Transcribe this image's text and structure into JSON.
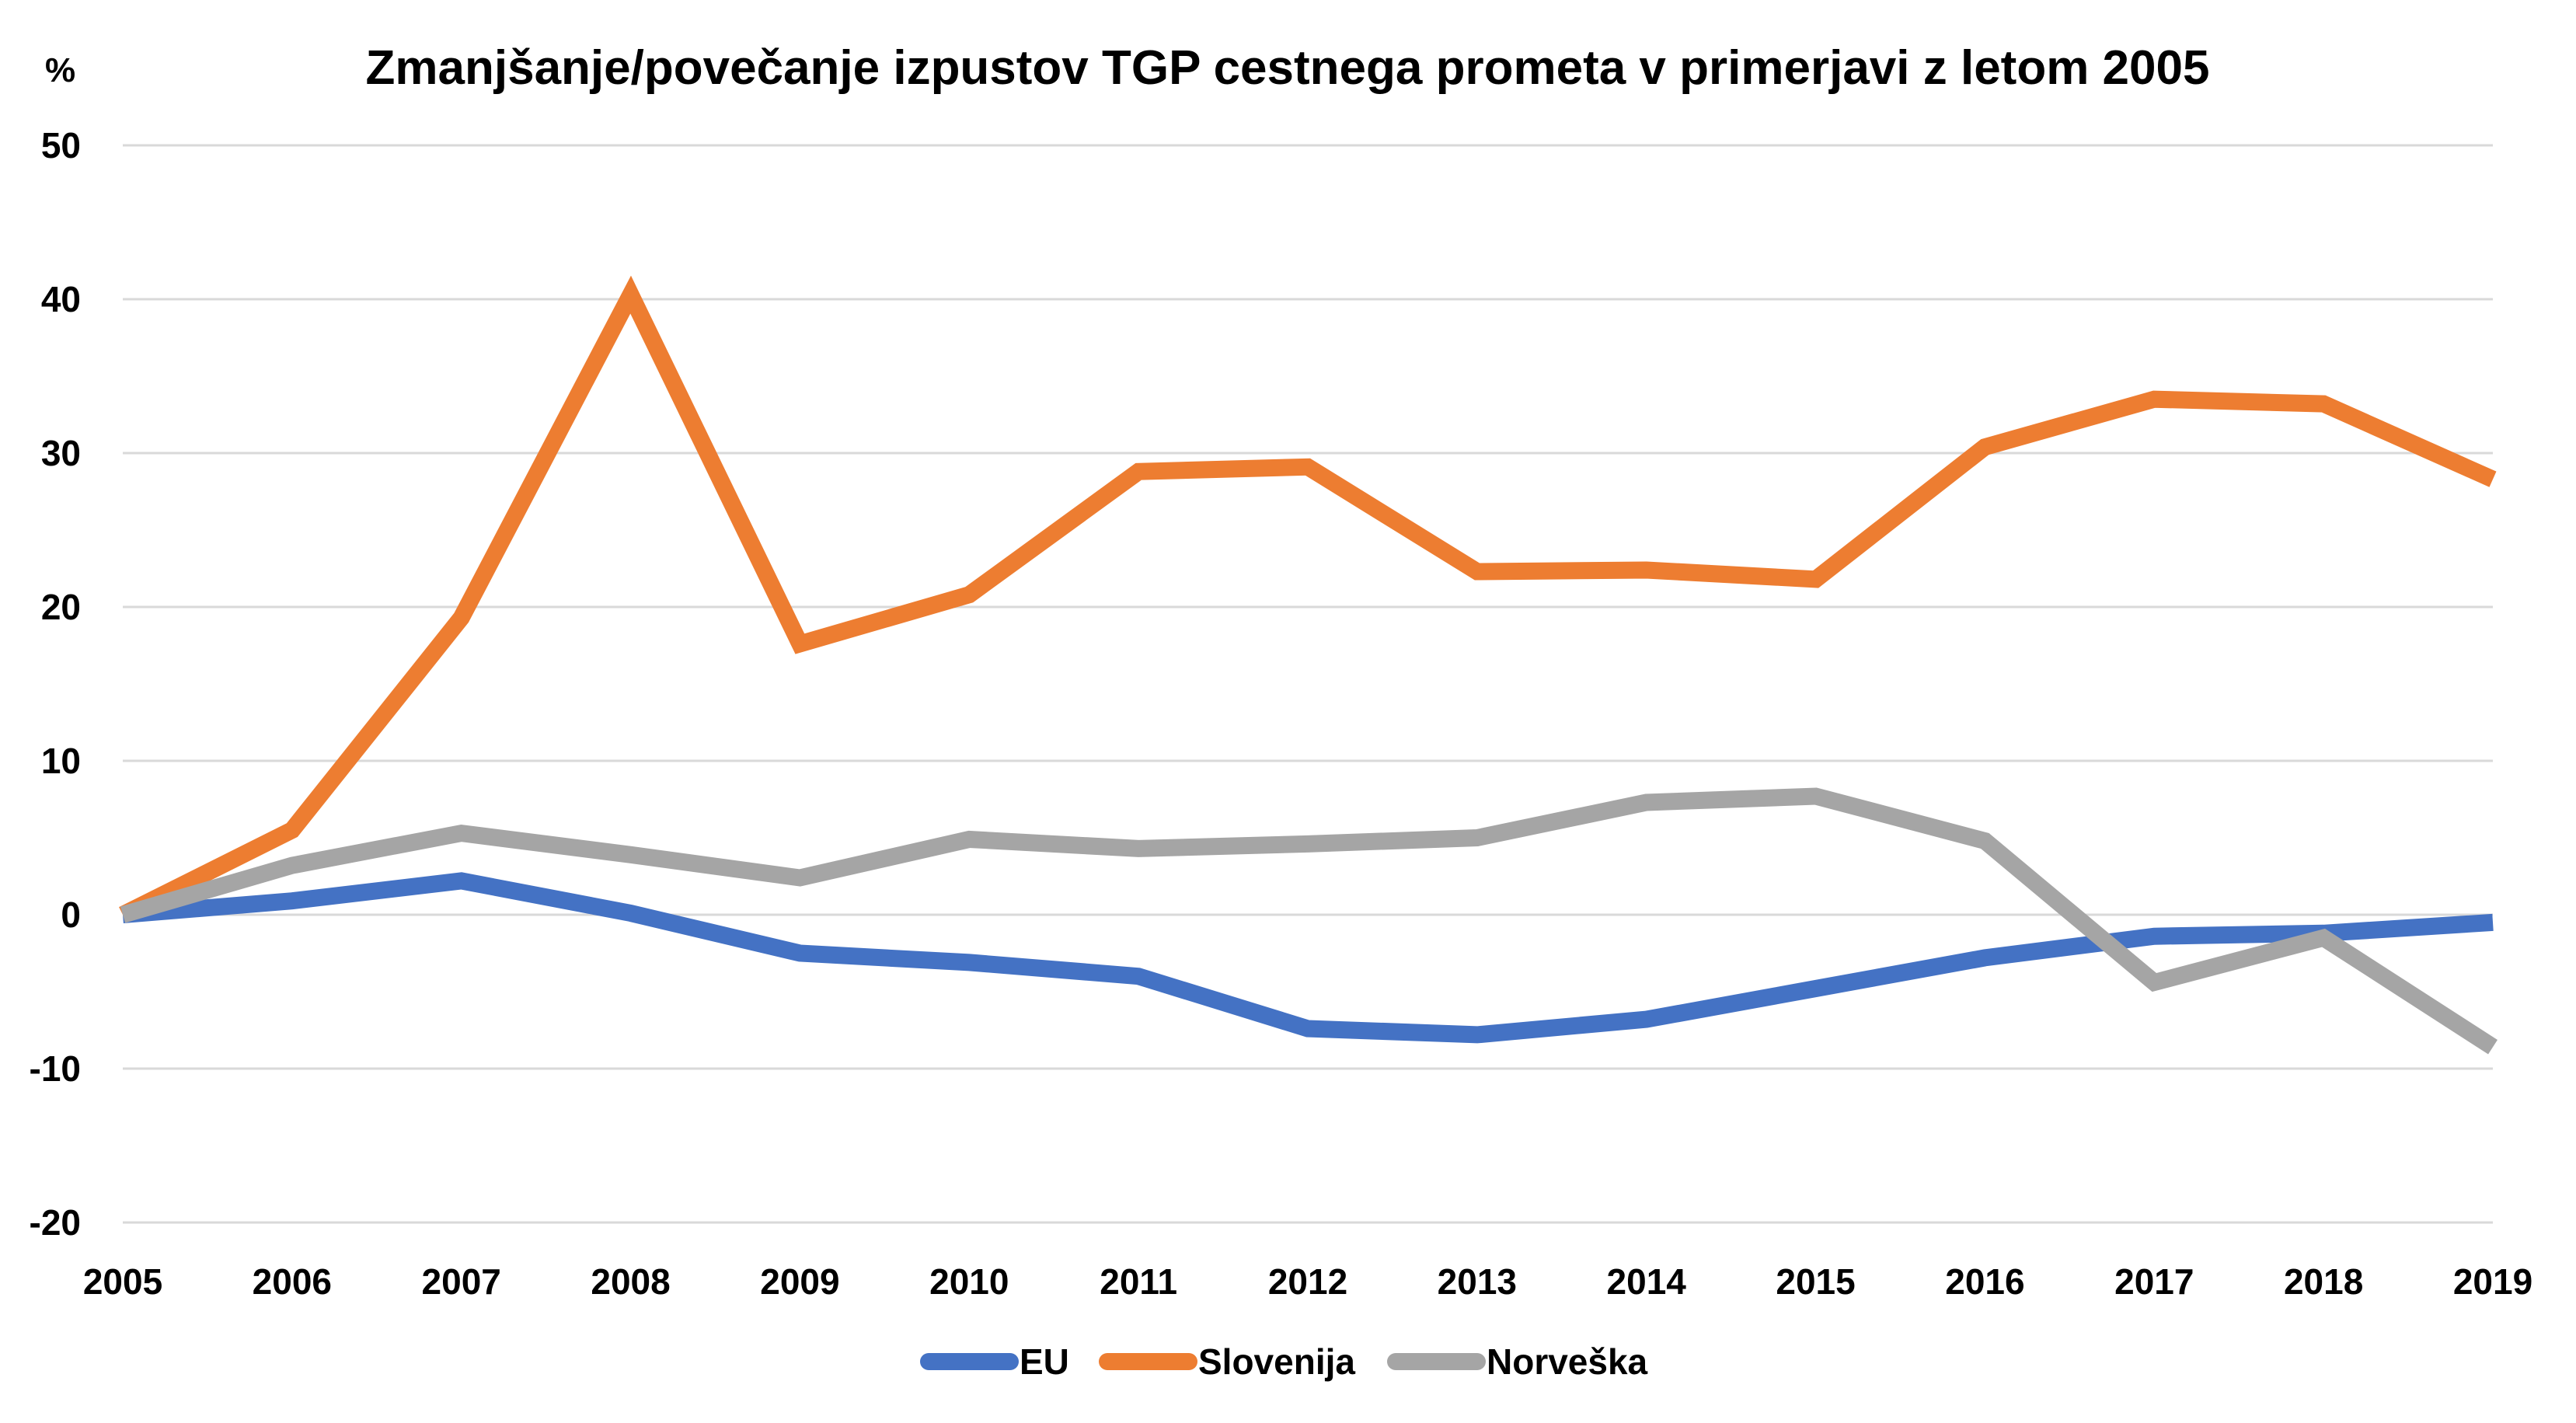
{
  "chart_data": {
    "type": "line",
    "title": "Zmanjšanje/povečanje izpustov TGP cestnega prometa v primerjavi z letom 2005",
    "ylabel": "%",
    "xlabel": "",
    "x": [
      "2005",
      "2006",
      "2007",
      "2008",
      "2009",
      "2010",
      "2011",
      "2012",
      "2013",
      "2014",
      "2015",
      "2016",
      "2017",
      "2018",
      "2019"
    ],
    "ylim": [
      -20,
      50
    ],
    "yticks": [
      50,
      40,
      30,
      20,
      10,
      0,
      -10,
      -20
    ],
    "ytick_labels": [
      "50",
      "40",
      "30",
      "20",
      "10",
      "0",
      "-10",
      "-20"
    ],
    "grid": true,
    "legend_position": "bottom",
    "series": [
      {
        "name": "EU",
        "color": "#4472C4",
        "values": [
          0,
          0.9,
          2.2,
          0.1,
          -2.5,
          -3.1,
          -4.0,
          -7.4,
          -7.8,
          -6.8,
          -4.8,
          -2.8,
          -1.4,
          -1.2,
          -0.5
        ]
      },
      {
        "name": "Slovenija",
        "color": "#ED7D31",
        "values": [
          0,
          5.5,
          19.3,
          40.3,
          17.6,
          20.8,
          28.8,
          29.1,
          22.3,
          22.4,
          21.8,
          30.4,
          33.5,
          33.2,
          28.3
        ]
      },
      {
        "name": "Norveška",
        "color": "#A5A5A5",
        "values": [
          0,
          3.2,
          5.3,
          3.9,
          2.4,
          4.9,
          4.3,
          4.6,
          5.0,
          7.3,
          7.7,
          4.8,
          -4.4,
          -1.5,
          -8.6
        ]
      }
    ]
  }
}
